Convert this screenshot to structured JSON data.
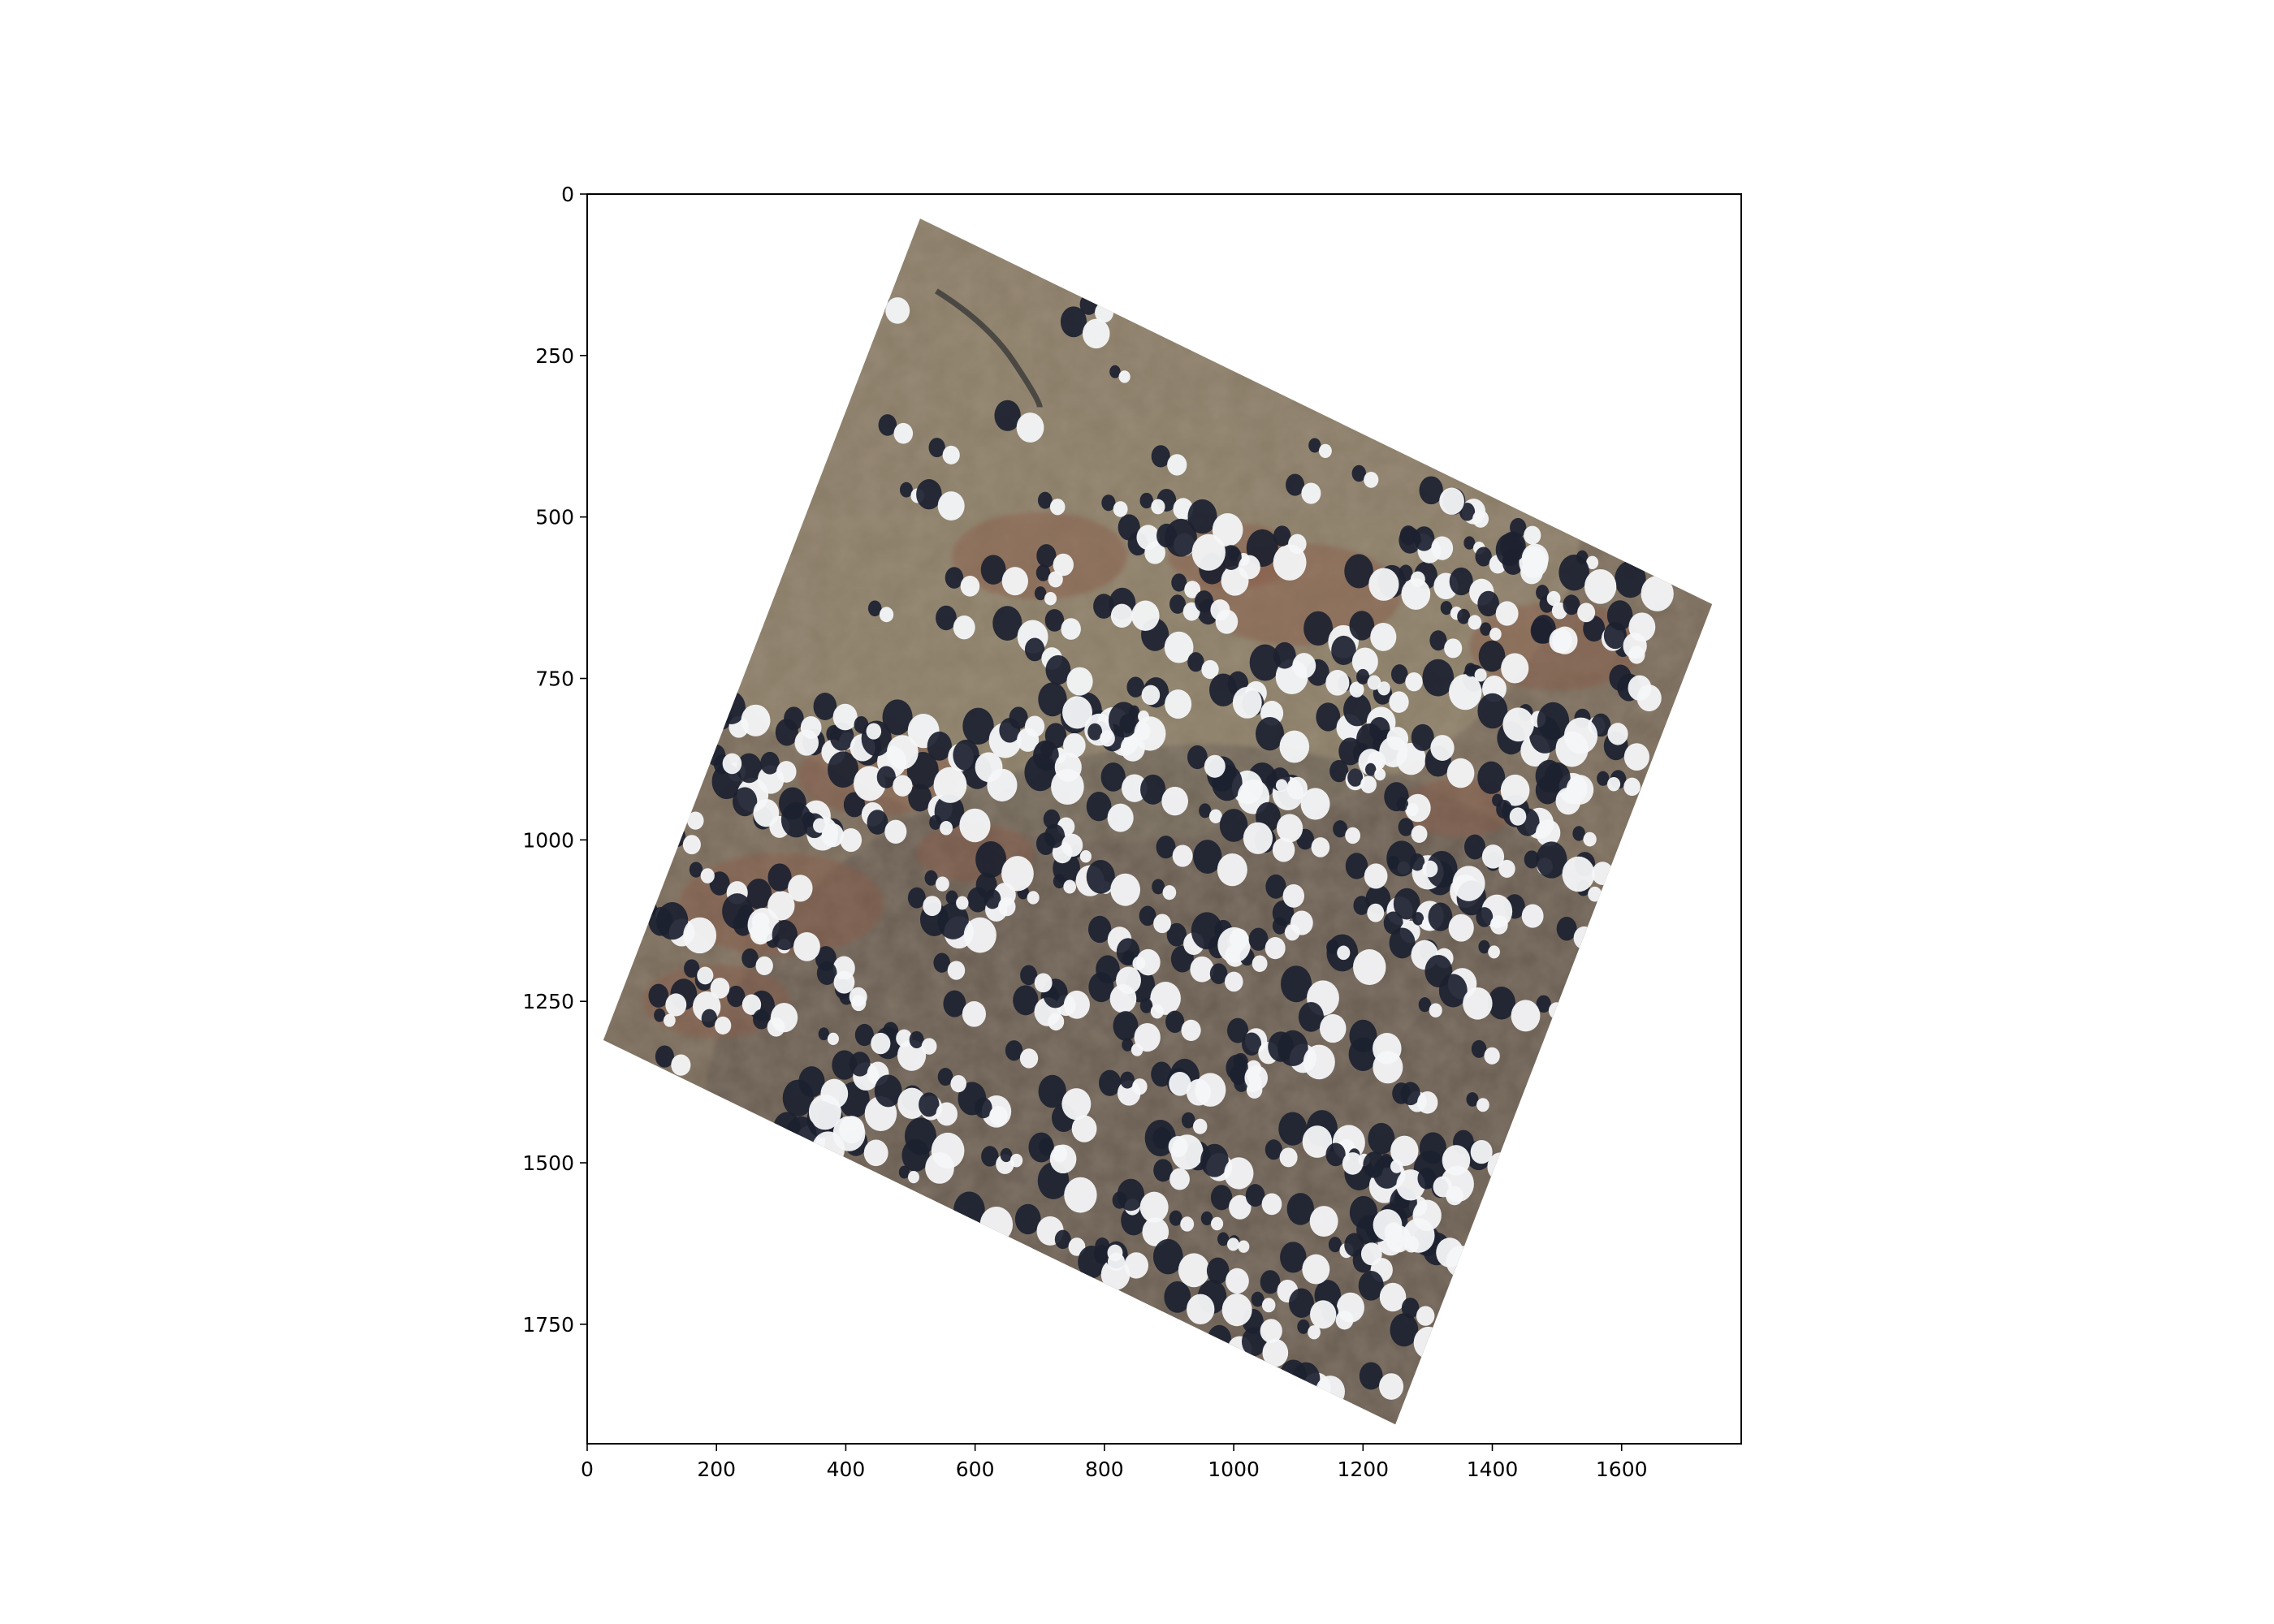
{
  "chart_data": {
    "type": "image",
    "title": "",
    "xlabel": "",
    "ylabel": "",
    "xlim": [
      0,
      1785
    ],
    "ylim": [
      1935,
      0
    ],
    "y_axis_inverted": true,
    "grid": false,
    "x_ticks": [
      {
        "value": 0,
        "label": "0"
      },
      {
        "value": 200,
        "label": "200"
      },
      {
        "value": 400,
        "label": "400"
      },
      {
        "value": 600,
        "label": "600"
      },
      {
        "value": 800,
        "label": "800"
      },
      {
        "value": 1000,
        "label": "1000"
      },
      {
        "value": 1200,
        "label": "1200"
      },
      {
        "value": 1400,
        "label": "1400"
      },
      {
        "value": 1600,
        "label": "1600"
      }
    ],
    "y_ticks": [
      {
        "value": 0,
        "label": "0"
      },
      {
        "value": 250,
        "label": "250"
      },
      {
        "value": 500,
        "label": "500"
      },
      {
        "value": 750,
        "label": "750"
      },
      {
        "value": 1000,
        "label": "1000"
      },
      {
        "value": 1250,
        "label": "1250"
      },
      {
        "value": 1500,
        "label": "1500"
      },
      {
        "value": 1750,
        "label": "1750"
      }
    ],
    "scene_footprint": [
      [
        515,
        38
      ],
      [
        1740,
        635
      ],
      [
        1250,
        1905
      ],
      [
        25,
        1310
      ]
    ],
    "colors": {
      "terrain_base": "#7a6c5c",
      "terrain_dark": "#5e5650",
      "terrain_red": "#8a5c48",
      "terrain_tan": "#9a8f75",
      "cloud": "#f4f6f8",
      "cloud_shadow": "#1c2130",
      "axis": "#000000",
      "background": "#ffffff"
    }
  }
}
